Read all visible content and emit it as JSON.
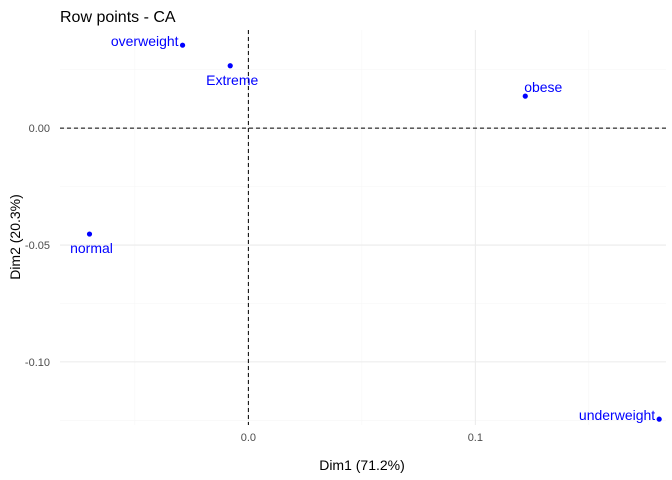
{
  "chart_data": {
    "type": "scatter",
    "title": "Row points - CA",
    "xlabel": "Dim1 (71.2%)",
    "ylabel": "Dim2 (20.3%)",
    "xlim": [
      -0.083,
      0.184
    ],
    "ylim": [
      -0.127,
      0.042
    ],
    "x_ticks": [
      0.0,
      0.1
    ],
    "x_tick_labels": [
      "0.0",
      "0.1"
    ],
    "y_ticks": [
      0.0,
      -0.05,
      -0.1
    ],
    "y_tick_labels": [
      "0.00",
      "-0.05",
      "-0.10"
    ],
    "grid": true,
    "legend": "none",
    "point_color": "#0000FF",
    "points": [
      {
        "label": "overweight",
        "x": -0.029,
        "y": 0.0355,
        "label_side": "left"
      },
      {
        "label": "Extreme",
        "x": -0.008,
        "y": 0.0267,
        "label_side": "below"
      },
      {
        "label": "obese",
        "x": 0.122,
        "y": 0.0137,
        "label_side": "above"
      },
      {
        "label": "normal",
        "x": -0.07,
        "y": -0.0453,
        "label_side": "below"
      },
      {
        "label": "underweight",
        "x": 0.181,
        "y": -0.1245,
        "label_side": "left"
      }
    ],
    "reference_lines": {
      "x": 0,
      "y": 0
    }
  }
}
